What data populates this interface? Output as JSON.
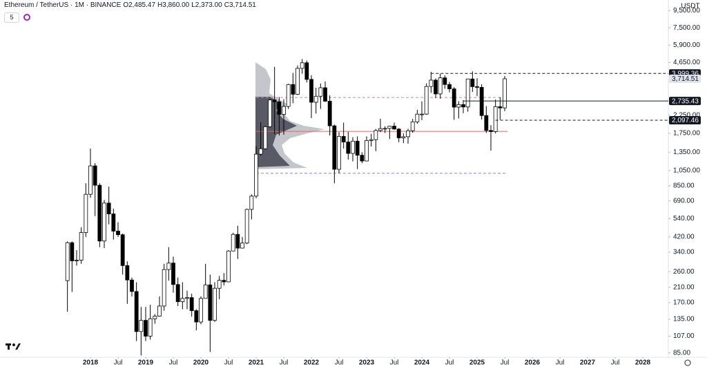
{
  "chart_data": {
    "type": "candlestick",
    "symbol": "Ethereum / TetherUS · 1M · BINANCE",
    "legend_values": [
      {
        "key": "O",
        "value": "2,485.47"
      },
      {
        "key": "H",
        "value": "3,860.00"
      },
      {
        "key": "L",
        "value": "2,373.00"
      },
      {
        "key": "C",
        "value": "3,714.51"
      }
    ],
    "interval": "5",
    "currency": "USDT",
    "up_color": "#ffffff",
    "down_color": "#000000",
    "border_color": "#000000",
    "log_scale": true,
    "ylim": [
      80,
      11000
    ],
    "yticks": [
      {
        "value": 9500,
        "label": "9,500.00"
      },
      {
        "value": 7500,
        "label": "7,500.00"
      },
      {
        "value": 5900,
        "label": "5,900.00"
      },
      {
        "value": 4650,
        "label": "4,650.00"
      },
      {
        "value": 2250,
        "label": "2,250.00"
      },
      {
        "value": 1750,
        "label": "1,750.00"
      },
      {
        "value": 1350,
        "label": "1,350.00"
      },
      {
        "value": 1050,
        "label": "1,050.00"
      },
      {
        "value": 850,
        "label": "850.00"
      },
      {
        "value": 690,
        "label": "690.00"
      },
      {
        "value": 540,
        "label": "540.00"
      },
      {
        "value": 420,
        "label": "420.00"
      },
      {
        "value": 340,
        "label": "340.00"
      },
      {
        "value": 260,
        "label": "260.00"
      },
      {
        "value": 210,
        "label": "210.00"
      },
      {
        "value": 170,
        "label": "170.00"
      },
      {
        "value": 135,
        "label": "135.00"
      },
      {
        "value": 107,
        "label": "107.00"
      },
      {
        "value": 85,
        "label": "85.00"
      }
    ],
    "xticks": [
      {
        "value": "2018-01",
        "label": "2018"
      },
      {
        "value": "2018-07",
        "label": "Jul"
      },
      {
        "value": "2019-01",
        "label": "2019"
      },
      {
        "value": "2019-07",
        "label": "Jul"
      },
      {
        "value": "2020-01",
        "label": "2020"
      },
      {
        "value": "2020-07",
        "label": "Jul"
      },
      {
        "value": "2021-01",
        "label": "2021"
      },
      {
        "value": "2021-07",
        "label": "Jul"
      },
      {
        "value": "2022-01",
        "label": "2022"
      },
      {
        "value": "2022-07",
        "label": "Jul"
      },
      {
        "value": "2023-01",
        "label": "2023"
      },
      {
        "value": "2023-07",
        "label": "Jul"
      },
      {
        "value": "2024-01",
        "label": "2024"
      },
      {
        "value": "2024-07",
        "label": "Jul"
      },
      {
        "value": "2025-01",
        "label": "2025"
      },
      {
        "value": "2025-07",
        "label": "Jul"
      },
      {
        "value": "2026-01",
        "label": "2026"
      },
      {
        "value": "2026-07",
        "label": "Jul"
      },
      {
        "value": "2027-01",
        "label": "2027"
      },
      {
        "value": "2027-07",
        "label": "Jul"
      },
      {
        "value": "2028-01",
        "label": "2028"
      }
    ],
    "price_lines": [
      {
        "value": 3999.36,
        "label": "3,999.36",
        "style": "dashed",
        "from": "2024-03"
      },
      {
        "value": 2735.43,
        "label": "2,735.43",
        "style": "solid",
        "from": "2024-10"
      },
      {
        "value": 2097.46,
        "label": "2,097.46",
        "style": "dashed",
        "from": "2025-05"
      }
    ],
    "last_price": {
      "value": 3714.51,
      "label": "3,714.51"
    },
    "levels": [
      {
        "value": 2870,
        "color": "#c48ea8",
        "style": "dashed",
        "from": "2021-01"
      },
      {
        "value": 1800,
        "color": "#e06666",
        "style": "solid",
        "from": "2021-01"
      },
      {
        "value": 1010,
        "color": "#9b7fc0",
        "style": "dashed",
        "from": "2021-01"
      }
    ],
    "x": [
      "2017-08",
      "2017-09",
      "2017-10",
      "2017-11",
      "2017-12",
      "2018-01",
      "2018-02",
      "2018-03",
      "2018-04",
      "2018-05",
      "2018-06",
      "2018-07",
      "2018-08",
      "2018-09",
      "2018-10",
      "2018-11",
      "2018-12",
      "2019-01",
      "2019-02",
      "2019-03",
      "2019-04",
      "2019-05",
      "2019-06",
      "2019-07",
      "2019-08",
      "2019-09",
      "2019-10",
      "2019-11",
      "2019-12",
      "2020-01",
      "2020-02",
      "2020-03",
      "2020-04",
      "2020-05",
      "2020-06",
      "2020-07",
      "2020-08",
      "2020-09",
      "2020-10",
      "2020-11",
      "2020-12",
      "2021-01",
      "2021-02",
      "2021-03",
      "2021-04",
      "2021-05",
      "2021-06",
      "2021-07",
      "2021-08",
      "2021-09",
      "2021-10",
      "2021-11",
      "2021-12",
      "2022-01",
      "2022-02",
      "2022-03",
      "2022-04",
      "2022-05",
      "2022-06",
      "2022-07",
      "2022-08",
      "2022-09",
      "2022-10",
      "2022-11",
      "2022-12",
      "2023-01",
      "2023-02",
      "2023-03",
      "2023-04",
      "2023-05",
      "2023-06",
      "2023-07",
      "2023-08",
      "2023-09",
      "2023-10",
      "2023-11",
      "2023-12",
      "2024-01",
      "2024-02",
      "2024-03",
      "2024-04",
      "2024-05",
      "2024-06",
      "2024-07",
      "2024-08",
      "2024-09",
      "2024-10",
      "2024-11",
      "2024-12",
      "2025-01",
      "2025-02",
      "2025-03",
      "2025-04",
      "2025-05",
      "2025-06",
      "2025-07"
    ],
    "ohlc": [
      [
        230,
        395,
        150,
        388
      ],
      [
        388,
        395,
        197,
        302
      ],
      [
        302,
        350,
        283,
        305
      ],
      [
        305,
        480,
        290,
        446
      ],
      [
        446,
        880,
        420,
        756
      ],
      [
        756,
        1420,
        720,
        1118
      ],
      [
        1118,
        1160,
        560,
        856
      ],
      [
        856,
        880,
        365,
        397
      ],
      [
        397,
        700,
        360,
        670
      ],
      [
        670,
        840,
        500,
        577
      ],
      [
        577,
        620,
        405,
        455
      ],
      [
        455,
        515,
        420,
        433
      ],
      [
        433,
        440,
        250,
        283
      ],
      [
        283,
        300,
        167,
        232
      ],
      [
        232,
        240,
        185,
        198
      ],
      [
        198,
        225,
        100,
        114
      ],
      [
        114,
        160,
        82,
        133
      ],
      [
        133,
        160,
        100,
        107
      ],
      [
        107,
        165,
        102,
        136
      ],
      [
        136,
        145,
        127,
        141
      ],
      [
        141,
        185,
        140,
        162
      ],
      [
        162,
        290,
        152,
        268
      ],
      [
        268,
        365,
        230,
        293
      ],
      [
        293,
        320,
        195,
        218
      ],
      [
        218,
        240,
        162,
        172
      ],
      [
        172,
        225,
        155,
        180
      ],
      [
        180,
        200,
        155,
        182
      ],
      [
        182,
        192,
        140,
        152
      ],
      [
        152,
        155,
        116,
        130
      ],
      [
        130,
        185,
        126,
        180
      ],
      [
        180,
        290,
        180,
        217
      ],
      [
        217,
        250,
        86,
        133
      ],
      [
        133,
        225,
        130,
        207
      ],
      [
        207,
        245,
        178,
        231
      ],
      [
        231,
        255,
        215,
        226
      ],
      [
        226,
        350,
        225,
        346
      ],
      [
        346,
        445,
        345,
        435
      ],
      [
        435,
        490,
        310,
        360
      ],
      [
        360,
        420,
        360,
        386
      ],
      [
        386,
        620,
        380,
        614
      ],
      [
        614,
        755,
        535,
        737
      ],
      [
        737,
        1470,
        715,
        1314
      ],
      [
        1314,
        2040,
        1290,
        1416
      ],
      [
        1416,
        1940,
        1400,
        1919
      ],
      [
        1919,
        2800,
        1900,
        2773
      ],
      [
        2773,
        4380,
        1730,
        2707
      ],
      [
        2707,
        2890,
        1700,
        2274
      ],
      [
        2274,
        2800,
        1720,
        2536
      ],
      [
        2536,
        3470,
        2450,
        3433
      ],
      [
        3433,
        4030,
        2650,
        3001
      ],
      [
        3001,
        4460,
        2970,
        4288
      ],
      [
        4288,
        4870,
        3980,
        4631
      ],
      [
        4631,
        4780,
        3530,
        3683
      ],
      [
        3683,
        3900,
        2160,
        2688
      ],
      [
        2688,
        3280,
        2300,
        2920
      ],
      [
        2920,
        3480,
        2450,
        3283
      ],
      [
        3283,
        3580,
        2700,
        2727
      ],
      [
        2727,
        2960,
        1700,
        1942
      ],
      [
        1942,
        1975,
        880,
        1067
      ],
      [
        1067,
        1780,
        1010,
        1679
      ],
      [
        1679,
        2030,
        1420,
        1554
      ],
      [
        1554,
        1790,
        1220,
        1328
      ],
      [
        1328,
        1660,
        1190,
        1572
      ],
      [
        1572,
        1680,
        1070,
        1295
      ],
      [
        1295,
        1350,
        1160,
        1196
      ],
      [
        1196,
        1680,
        1190,
        1586
      ],
      [
        1586,
        1740,
        1460,
        1605
      ],
      [
        1605,
        1860,
        1370,
        1822
      ],
      [
        1822,
        2140,
        1780,
        1870
      ],
      [
        1870,
        1930,
        1760,
        1874
      ],
      [
        1874,
        1930,
        1620,
        1934
      ],
      [
        1934,
        2030,
        1840,
        1857
      ],
      [
        1857,
        1880,
        1550,
        1645
      ],
      [
        1645,
        1750,
        1530,
        1671
      ],
      [
        1671,
        1865,
        1520,
        1815
      ],
      [
        1815,
        2135,
        1765,
        2052
      ],
      [
        2052,
        2420,
        2000,
        2282
      ],
      [
        2282,
        2720,
        2100,
        2283
      ],
      [
        2283,
        3490,
        2260,
        3340
      ],
      [
        3340,
        4090,
        3060,
        3646
      ],
      [
        3646,
        3730,
        2850,
        3014
      ],
      [
        3014,
        3980,
        2820,
        3763
      ],
      [
        3763,
        3890,
        3240,
        3433
      ],
      [
        3433,
        3560,
        3080,
        3233
      ],
      [
        3233,
        3310,
        2110,
        2513
      ],
      [
        2513,
        2730,
        2150,
        2603
      ],
      [
        2603,
        2770,
        2310,
        2518
      ],
      [
        2518,
        3720,
        2360,
        3705
      ],
      [
        3705,
        4110,
        3100,
        3332
      ],
      [
        3332,
        3745,
        2920,
        3300
      ],
      [
        3300,
        3440,
        2120,
        2237
      ],
      [
        2237,
        2550,
        1760,
        1822
      ],
      [
        1822,
        1960,
        1380,
        1794
      ],
      [
        1794,
        2790,
        1750,
        2528
      ],
      [
        2528,
        2880,
        2110,
        2485
      ],
      [
        2485.47,
        3860,
        2373,
        3714.51
      ]
    ]
  }
}
